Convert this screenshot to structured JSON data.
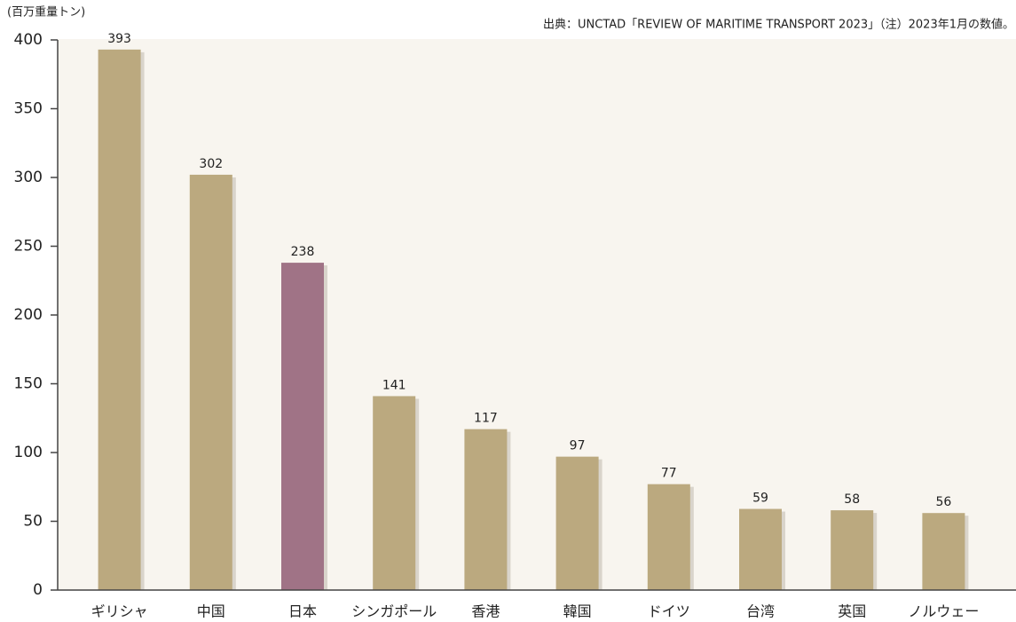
{
  "chart_data": {
    "type": "bar",
    "y_label": "(百万重量トン)",
    "source": "出典：UNCTAD「REVIEW OF MARITIME TRANSPORT 2023」（注）2023年1月の数値。",
    "categories": [
      "ギリシャ",
      "中国",
      "日本",
      "シンガポール",
      "香港",
      "韓国",
      "ドイツ",
      "台湾",
      "英国",
      "ノルウェー"
    ],
    "values": [
      393,
      302,
      238,
      141,
      117,
      97,
      77,
      59,
      58,
      56
    ],
    "colors": [
      "#bba97f",
      "#bba97f",
      "#a07386",
      "#bba97f",
      "#bba97f",
      "#bba97f",
      "#bba97f",
      "#bba97f",
      "#bba97f",
      "#bba97f"
    ],
    "ylim": [
      0,
      400
    ],
    "yticks": [
      0,
      50,
      100,
      150,
      200,
      250,
      300,
      350,
      400
    ]
  }
}
